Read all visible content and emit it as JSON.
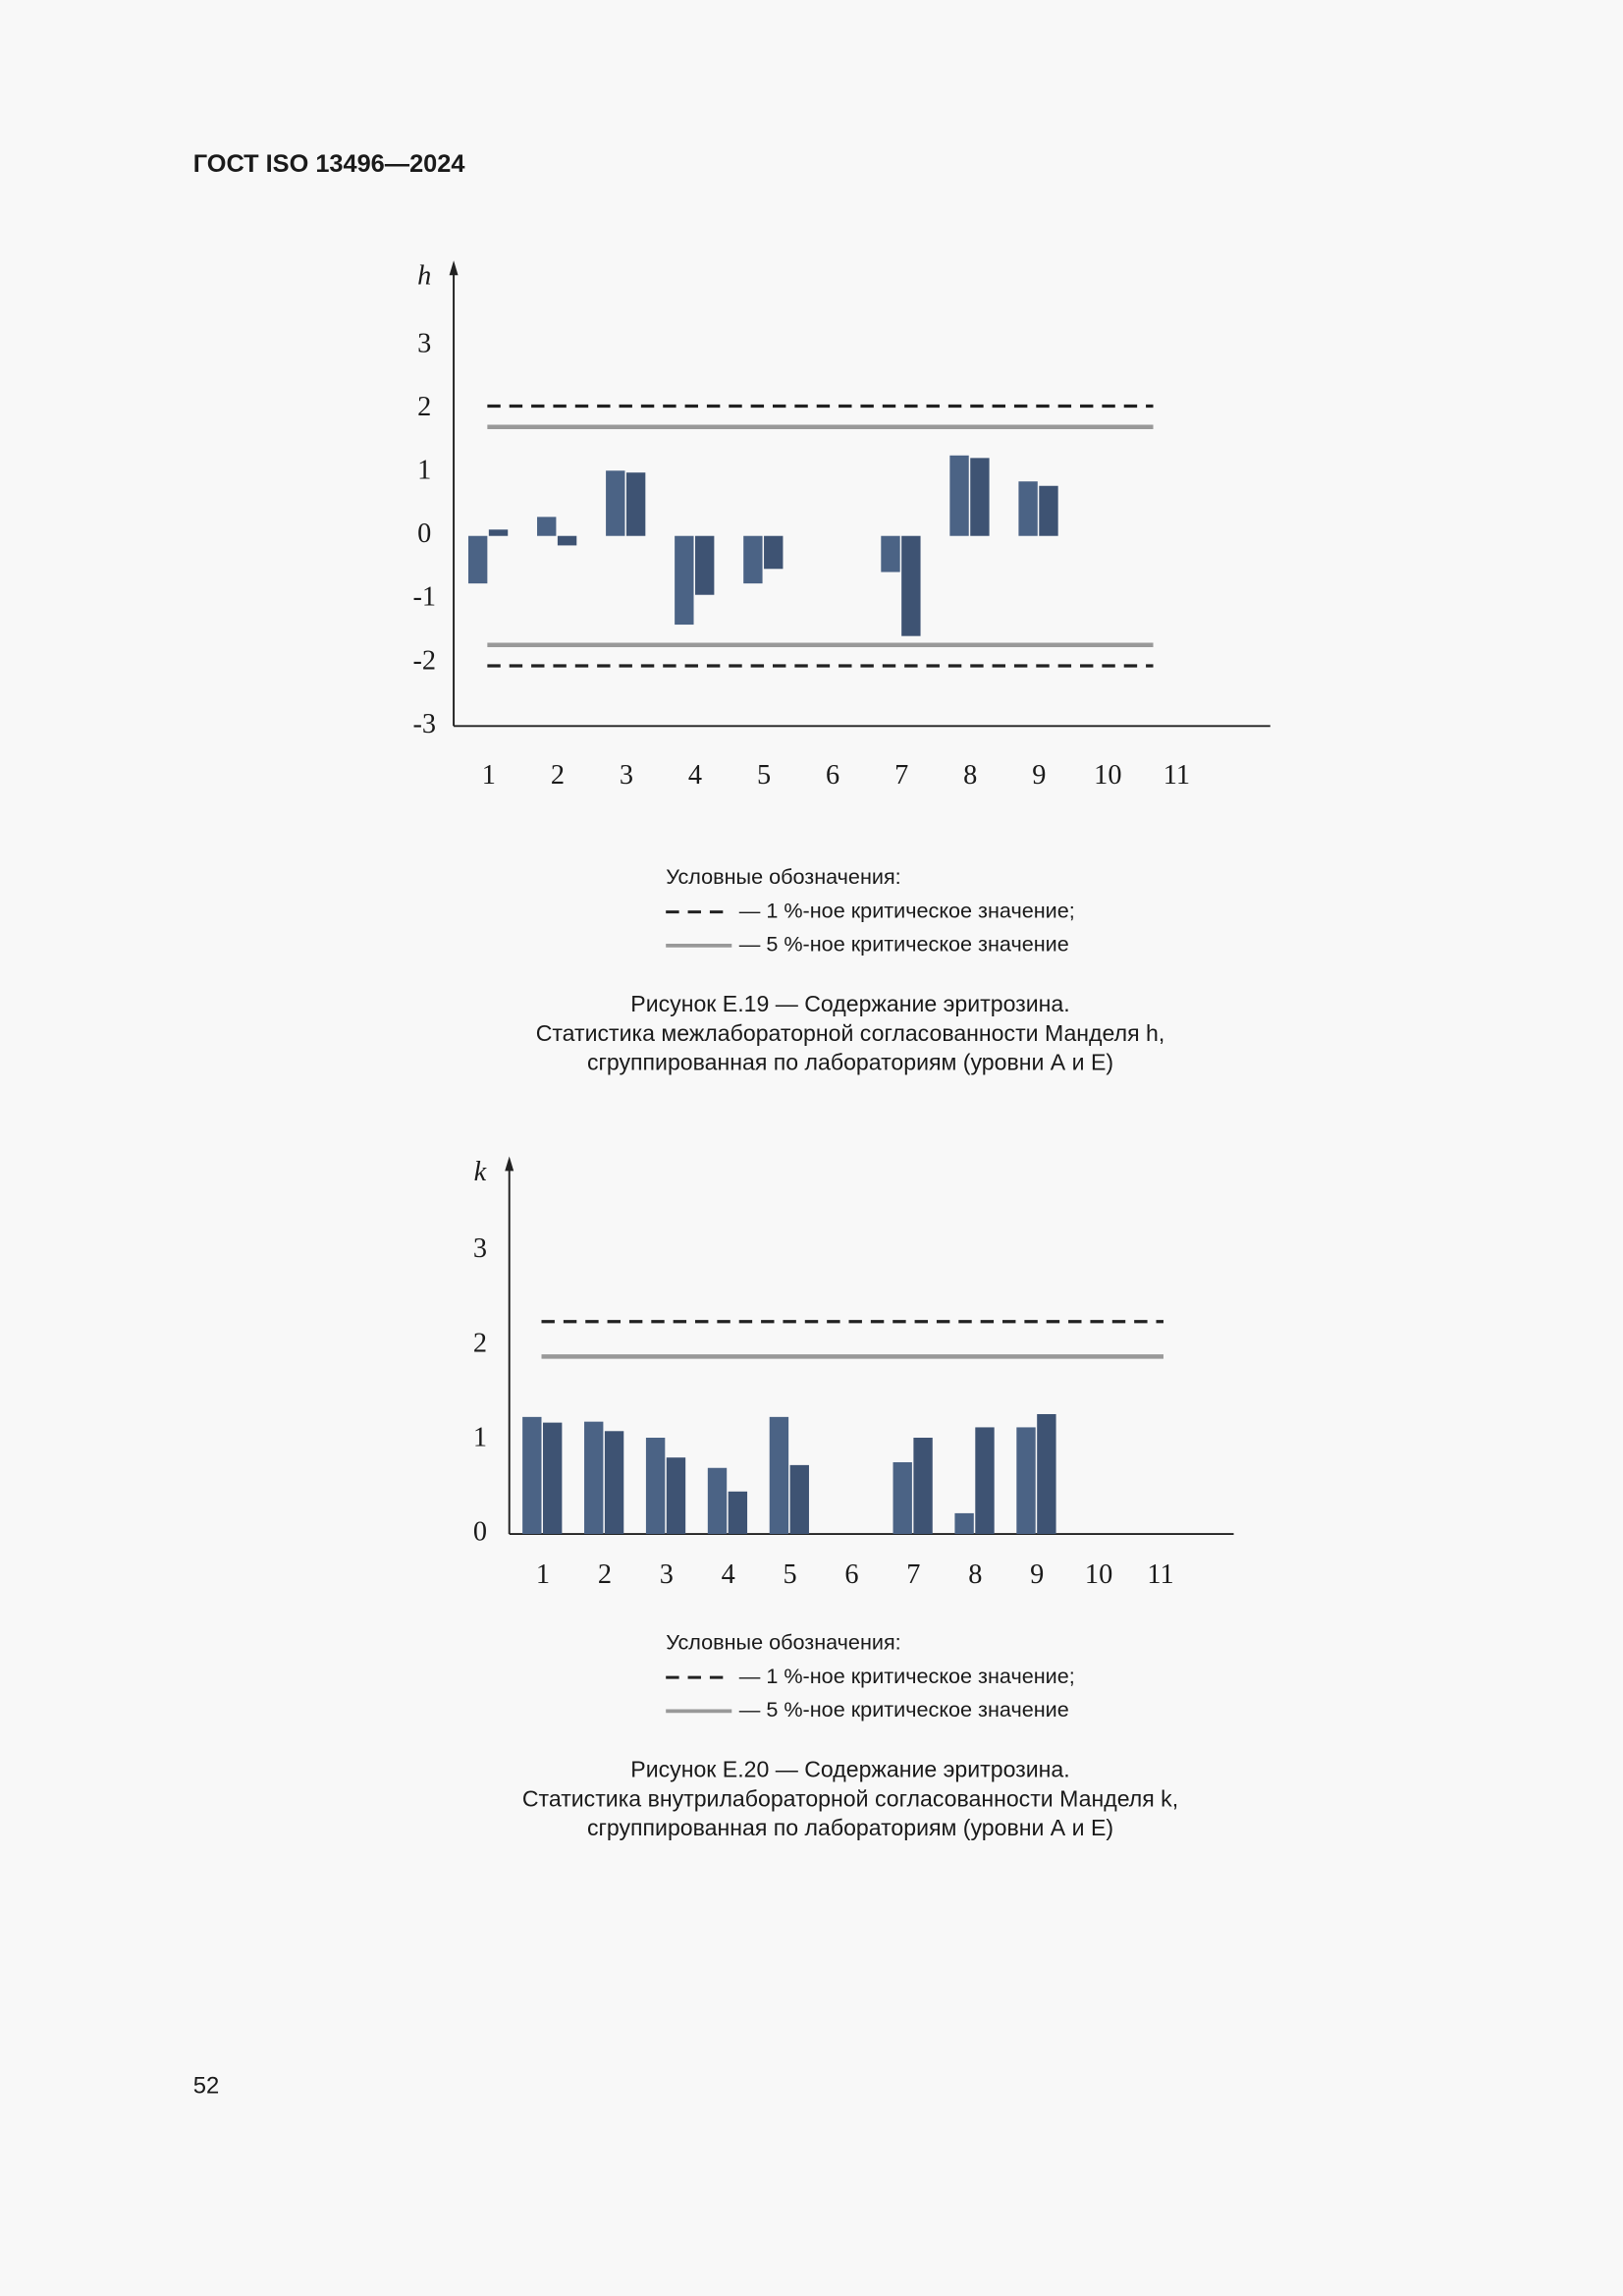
{
  "header": {
    "title": "ГОСТ ISO 13496—2024"
  },
  "page_number": "52",
  "chart_data": [
    {
      "type": "bar",
      "y_label": "h",
      "categories": [
        "1",
        "2",
        "3",
        "4",
        "5",
        "6",
        "7",
        "8",
        "9",
        "10",
        "11"
      ],
      "series": [
        {
          "color": "#4b6385",
          "values": [
            -0.75,
            0.3,
            1.03,
            -1.4,
            -0.75,
            null,
            -0.57,
            1.27,
            0.86,
            null,
            null
          ]
        },
        {
          "color": "#3e5373",
          "values": [
            0.1,
            -0.15,
            1.0,
            -0.93,
            -0.52,
            null,
            -1.58,
            1.23,
            0.79,
            null,
            null
          ]
        }
      ],
      "ylim": [
        -3,
        4.3
      ],
      "yticks": [
        -3,
        -2,
        -1,
        0,
        1,
        2,
        3
      ],
      "critical_lines": [
        {
          "label": "— 1 %-ное критическое значение;",
          "values": [
            2.05,
            -2.05
          ],
          "color": "#222222",
          "dashed": true
        },
        {
          "label": "— 5 %-ное критическое значение",
          "values": [
            1.72,
            -1.72
          ],
          "color": "#999999",
          "dashed": false
        }
      ],
      "legend_title": "Условные обозначения:",
      "caption": [
        "Рисунок Е.19 — Содержание эритрозина.",
        "Статистика межлабораторной согласованности Манделя h,",
        "сгруппированная по лабораториям (уровни А и Е)"
      ]
    },
    {
      "type": "bar",
      "y_label": "k",
      "categories": [
        "1",
        "2",
        "3",
        "4",
        "5",
        "6",
        "7",
        "8",
        "9",
        "10",
        "11"
      ],
      "series": [
        {
          "color": "#4b6385",
          "values": [
            1.24,
            1.19,
            1.02,
            0.7,
            1.24,
            null,
            0.76,
            0.22,
            1.13,
            null,
            null
          ]
        },
        {
          "color": "#3e5373",
          "values": [
            1.18,
            1.09,
            0.81,
            0.45,
            0.73,
            null,
            1.02,
            1.13,
            1.27,
            null,
            null
          ]
        }
      ],
      "ylim": [
        0,
        3.97
      ],
      "yticks": [
        0,
        1,
        2,
        3
      ],
      "critical_lines": [
        {
          "label": "— 1 %-ное критическое значение;",
          "values": [
            2.25
          ],
          "color": "#222222",
          "dashed": true
        },
        {
          "label": "— 5 %-ное критическое значение",
          "values": [
            1.88
          ],
          "color": "#999999",
          "dashed": false
        }
      ],
      "legend_title": "Условные обозначения:",
      "caption": [
        "Рисунок Е.20 — Содержание эритрозина.",
        "Статистика внутрилабораторной согласованности Манделя k,",
        "сгруппированная по лабораториям (уровни А и Е)"
      ]
    }
  ]
}
